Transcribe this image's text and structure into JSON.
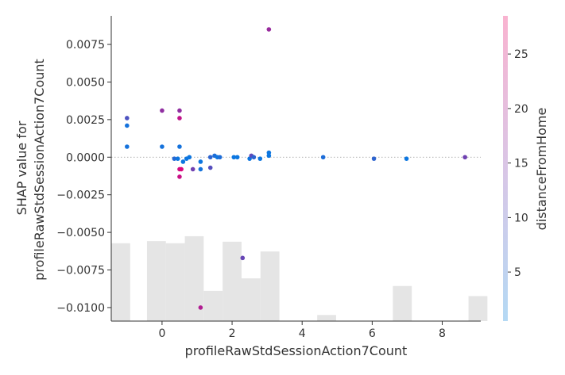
{
  "chart_data": {
    "type": "scatter",
    "xlabel": "profileRawStdSessionAction7Count",
    "ylabel_lines": [
      "SHAP value for",
      "profileRawStdSessionAction7Count"
    ],
    "colorbar_label": "distanceFromHome",
    "xlim": [
      -1.45,
      9.1
    ],
    "ylim": [
      -0.0109,
      0.0094
    ],
    "x_ticks": [
      0,
      2,
      4,
      6,
      8
    ],
    "y_ticks": [
      0.0075,
      0.005,
      0.0025,
      0.0,
      -0.0025,
      -0.005,
      -0.0075,
      -0.01
    ],
    "y_tick_labels": [
      "0.0075",
      "0.0050",
      "0.0025",
      "0.0000",
      "−0.0025",
      "−0.0050",
      "−0.0075",
      "−0.0100"
    ],
    "colorbar_range": [
      0.5,
      28.5
    ],
    "colorbar_ticks": [
      5,
      10,
      15,
      20,
      25
    ],
    "colors": {
      "low": "#b4d9f4",
      "high": "#f9b3d0",
      "histogram": "#e5e5e5",
      "zero_line": "#999999",
      "axis": "#333333"
    },
    "histogram": {
      "bin_width": 0.54,
      "bars": [
        {
          "x0": -1.45,
          "height": 0.255
        },
        {
          "x0": -0.43,
          "height": 0.262
        },
        {
          "x0": 0.11,
          "height": 0.255
        },
        {
          "x0": 0.65,
          "height": 0.278
        },
        {
          "x0": 1.19,
          "height": 0.099
        },
        {
          "x0": 1.73,
          "height": 0.26
        },
        {
          "x0": 2.27,
          "height": 0.14
        },
        {
          "x0": 2.81,
          "height": 0.228
        },
        {
          "x0": 4.43,
          "height": 0.02
        },
        {
          "x0": 6.59,
          "height": 0.115
        },
        {
          "x0": 8.75,
          "height": 0.082
        }
      ]
    },
    "points": [
      {
        "x": -1.0,
        "y": 0.0026,
        "c": 10
      },
      {
        "x": -1.0,
        "y": 0.0021,
        "c": 3
      },
      {
        "x": -1.0,
        "y": 0.0007,
        "c": 3
      },
      {
        "x": 0.0,
        "y": 0.0031,
        "c": 18
      },
      {
        "x": 0.0,
        "y": 0.0007,
        "c": 3
      },
      {
        "x": 0.5,
        "y": 0.0031,
        "c": 18
      },
      {
        "x": 0.5,
        "y": 0.0026,
        "c": 24
      },
      {
        "x": 0.5,
        "y": 0.0007,
        "c": 3
      },
      {
        "x": 0.35,
        "y": -0.0001,
        "c": 5
      },
      {
        "x": 0.45,
        "y": -0.0001,
        "c": 2
      },
      {
        "x": 0.6,
        "y": -0.0003,
        "c": 2
      },
      {
        "x": 0.7,
        "y": -0.0001,
        "c": 2
      },
      {
        "x": 0.78,
        "y": 0.0,
        "c": 2
      },
      {
        "x": 0.5,
        "y": -0.0008,
        "c": 26
      },
      {
        "x": 0.55,
        "y": -0.0008,
        "c": 27
      },
      {
        "x": 0.5,
        "y": -0.0013,
        "c": 25
      },
      {
        "x": 0.88,
        "y": -0.0008,
        "c": 14
      },
      {
        "x": 1.1,
        "y": -0.0003,
        "c": 2
      },
      {
        "x": 1.1,
        "y": -0.0008,
        "c": 3
      },
      {
        "x": 1.38,
        "y": -0.0007,
        "c": 11
      },
      {
        "x": 1.38,
        "y": 0.0,
        "c": 6
      },
      {
        "x": 1.5,
        "y": 0.0001,
        "c": 4
      },
      {
        "x": 1.58,
        "y": 0.0,
        "c": 2
      },
      {
        "x": 1.65,
        "y": 0.0,
        "c": 4
      },
      {
        "x": 2.05,
        "y": 0.0,
        "c": 2
      },
      {
        "x": 2.15,
        "y": 0.0,
        "c": 2
      },
      {
        "x": 2.5,
        "y": -0.0001,
        "c": 2
      },
      {
        "x": 2.55,
        "y": 0.0001,
        "c": 12
      },
      {
        "x": 2.62,
        "y": 0.0,
        "c": 6
      },
      {
        "x": 2.8,
        "y": -0.0001,
        "c": 2
      },
      {
        "x": 3.05,
        "y": 0.0003,
        "c": 2
      },
      {
        "x": 3.05,
        "y": 0.0001,
        "c": 2
      },
      {
        "x": 3.05,
        "y": 0.0085,
        "c": 19
      },
      {
        "x": 2.3,
        "y": -0.0067,
        "c": 13
      },
      {
        "x": 1.1,
        "y": -0.01,
        "c": 22
      },
      {
        "x": 4.6,
        "y": 0.0,
        "c": 4
      },
      {
        "x": 6.05,
        "y": -0.0001,
        "c": 6
      },
      {
        "x": 6.98,
        "y": -0.0001,
        "c": 2
      },
      {
        "x": 8.65,
        "y": 0.0,
        "c": 14
      }
    ]
  }
}
